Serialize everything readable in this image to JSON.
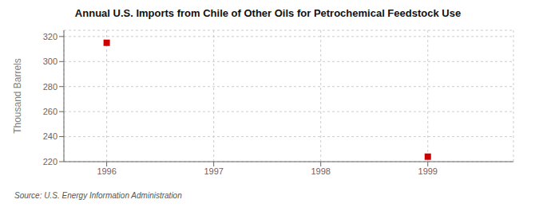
{
  "chart_data": {
    "type": "scatter",
    "title": "Annual U.S. Imports from Chile of Other Oils for Petrochemical Feedstock Use",
    "ylabel": "Thousand Barrels",
    "annotations": [
      "Source: U.S. Energy Information Administration"
    ],
    "x": [
      1996,
      1999
    ],
    "values": [
      315,
      224
    ],
    "color": "#cc0000",
    "marker": "square",
    "xlim": [
      1995.6,
      1999.8
    ],
    "ylim": [
      220,
      325
    ],
    "xticks": [
      1996,
      1997,
      1998,
      1999
    ],
    "yticks": [
      220,
      240,
      260,
      280,
      300,
      320
    ],
    "grid": true
  }
}
